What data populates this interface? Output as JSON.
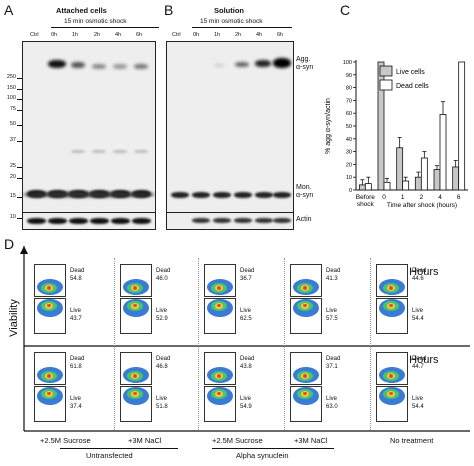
{
  "panel_a": {
    "letter": "A",
    "title": "Attached cells",
    "subtitle": "15 min osmotic shock",
    "lanes": [
      "Ctrl",
      "0h",
      "1h",
      "2h",
      "4h",
      "6h"
    ],
    "mw_markers": [
      "250",
      "150",
      "100",
      "75",
      "50",
      "37",
      "25",
      "20",
      "15",
      "10"
    ]
  },
  "panel_b": {
    "letter": "B",
    "title": "Solution",
    "subtitle": "15 min osmotic shock",
    "lanes": [
      "Ctrl",
      "0h",
      "1h",
      "2h",
      "4h",
      "6h"
    ],
    "labels": {
      "agg": "Agg.\nα-syn",
      "mon": "Mon.\nα-syn",
      "actin": "Actin"
    }
  },
  "panel_c": {
    "letter": "C"
  },
  "chart_data": {
    "type": "bar",
    "ylabel": "% agg α-syn/actin",
    "xlabel": "Time after shock (hours)",
    "categories": [
      "Before\nshock",
      "0",
      "1",
      "2",
      "4",
      "6"
    ],
    "ylim": [
      0,
      100
    ],
    "yticks": [
      0,
      10,
      20,
      30,
      40,
      50,
      60,
      70,
      80,
      90,
      100
    ],
    "legend": "top-right",
    "series": [
      {
        "name": "Live cells",
        "color": "#c8c8c8",
        "values": [
          4,
          100,
          33,
          10,
          16,
          18
        ],
        "errors": [
          4,
          0,
          8,
          4,
          3,
          5
        ]
      },
      {
        "name": "Dead cells",
        "color": "#ffffff",
        "values": [
          5,
          6,
          7,
          25,
          59,
          100
        ],
        "errors": [
          5,
          3,
          3,
          5,
          10,
          0
        ]
      }
    ]
  },
  "panel_d": {
    "letter": "D",
    "y_axis_label": "Viability",
    "rows": [
      {
        "label": "0 Hours",
        "cells": [
          {
            "dead": "54.8",
            "live": "43.7"
          },
          {
            "dead": "46.0",
            "live": "52.9"
          },
          {
            "dead": "36.7",
            "live": "62.5"
          },
          {
            "dead": "41.3",
            "live": "57.5"
          },
          {
            "dead": "44.6",
            "live": "54.4"
          }
        ]
      },
      {
        "label": "6 Hours",
        "cells": [
          {
            "dead": "61.8",
            "live": "37.4"
          },
          {
            "dead": "46.8",
            "live": "51.8"
          },
          {
            "dead": "43.8",
            "live": "54.9"
          },
          {
            "dead": "37.1",
            "live": "63.0"
          },
          {
            "dead": "44.7",
            "live": "54.4"
          }
        ]
      }
    ],
    "dead_word": "Dead",
    "live_word": "Live",
    "conditions": [
      "+2.5M Sucrose",
      "+3M NaCl",
      "+2.5M Sucrose",
      "+3M NaCl",
      "No treatment"
    ],
    "groups": [
      "Untransfected",
      "Alpha synuclein"
    ]
  }
}
